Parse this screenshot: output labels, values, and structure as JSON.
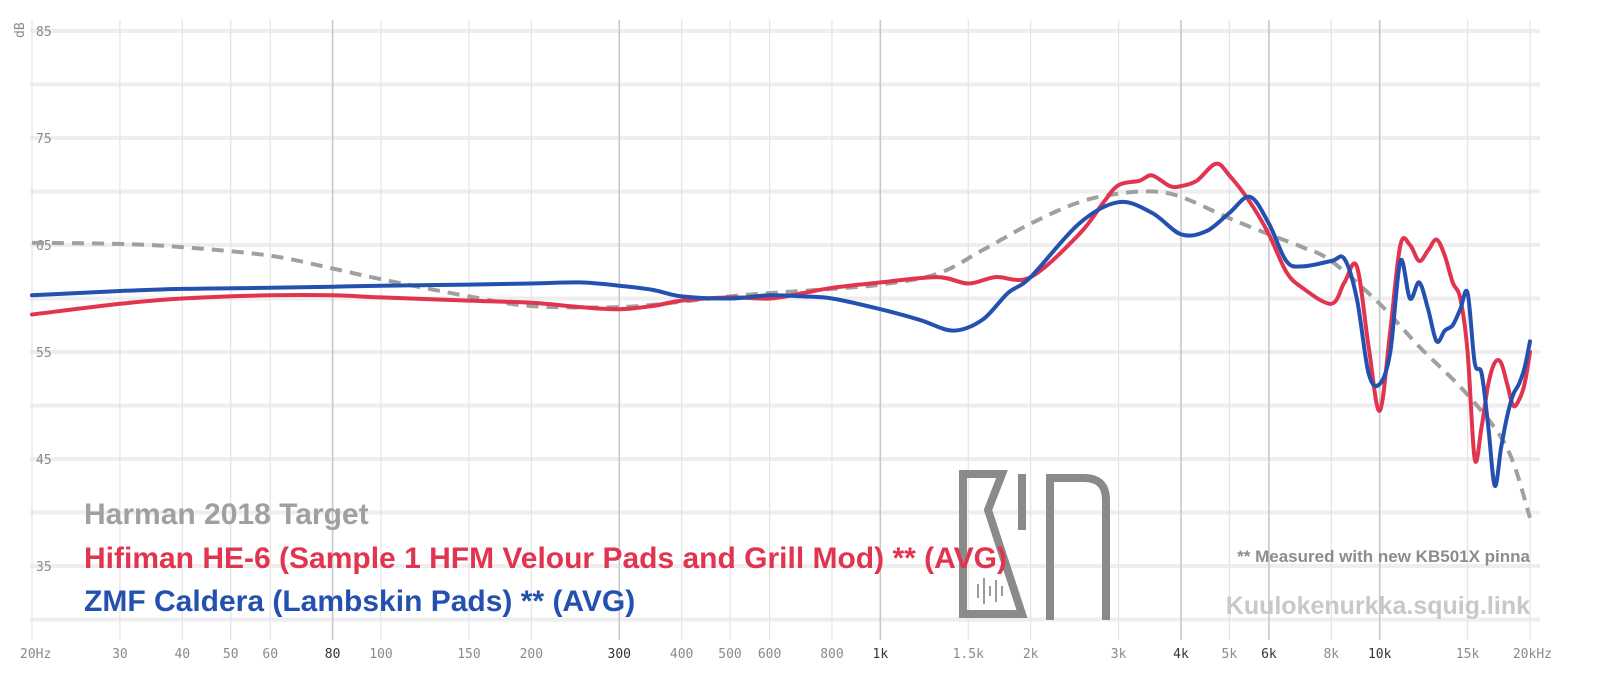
{
  "chart_data": {
    "type": "line",
    "ylabel": "dB",
    "x_scale": "log",
    "xlim": [
      20,
      20000
    ],
    "ylim": [
      30,
      85
    ],
    "yticks": [
      {
        "value": 85,
        "label": "85"
      },
      {
        "value": 75,
        "label": "75"
      },
      {
        "value": 65,
        "label": "65"
      },
      {
        "value": 55,
        "label": "55"
      },
      {
        "value": 45,
        "label": "45"
      },
      {
        "value": 35,
        "label": "35"
      }
    ],
    "xticks": [
      {
        "value": 20,
        "label": "20Hz",
        "major": false
      },
      {
        "value": 30,
        "label": "30",
        "major": false
      },
      {
        "value": 40,
        "label": "40",
        "major": false
      },
      {
        "value": 50,
        "label": "50",
        "major": false
      },
      {
        "value": 60,
        "label": "60",
        "major": false
      },
      {
        "value": 80,
        "label": "80",
        "major": true
      },
      {
        "value": 100,
        "label": "100",
        "major": false
      },
      {
        "value": 150,
        "label": "150",
        "major": false
      },
      {
        "value": 200,
        "label": "200",
        "major": false
      },
      {
        "value": 300,
        "label": "300",
        "major": true
      },
      {
        "value": 400,
        "label": "400",
        "major": false
      },
      {
        "value": 500,
        "label": "500",
        "major": false
      },
      {
        "value": 600,
        "label": "600",
        "major": false
      },
      {
        "value": 800,
        "label": "800",
        "major": false
      },
      {
        "value": 1000,
        "label": "1k",
        "major": true
      },
      {
        "value": 1500,
        "label": "1.5k",
        "major": false
      },
      {
        "value": 2000,
        "label": "2k",
        "major": false
      },
      {
        "value": 3000,
        "label": "3k",
        "major": false
      },
      {
        "value": 4000,
        "label": "4k",
        "major": true
      },
      {
        "value": 5000,
        "label": "5k",
        "major": false
      },
      {
        "value": 6000,
        "label": "6k",
        "major": true
      },
      {
        "value": 8000,
        "label": "8k",
        "major": false
      },
      {
        "value": 10000,
        "label": "10k",
        "major": true
      },
      {
        "value": 15000,
        "label": "15k",
        "major": false
      },
      {
        "value": 20000,
        "label": "20kHz",
        "major": false
      }
    ],
    "grid": true,
    "legend_position": "bottom-left",
    "series": [
      {
        "name": "Harman 2018 Target",
        "color": "#a0a0a0",
        "dashed": true,
        "x": [
          20,
          30,
          40,
          60,
          80,
          100,
          150,
          200,
          300,
          400,
          500,
          600,
          800,
          1000,
          1300,
          1600,
          2000,
          2500,
          3000,
          3500,
          4000,
          5000,
          6000,
          7000,
          8000,
          10000,
          12000,
          15000,
          18000,
          20000
        ],
        "values": [
          65.2,
          65.1,
          64.8,
          64.0,
          62.8,
          61.8,
          60.2,
          59.3,
          59.2,
          59.7,
          60.2,
          60.5,
          60.9,
          61.3,
          62.3,
          64.5,
          67.0,
          69.0,
          69.8,
          70.0,
          69.5,
          67.5,
          66.0,
          64.8,
          63.5,
          59.5,
          55.5,
          51.0,
          46.0,
          39.5
        ]
      },
      {
        "name": "Hifiman HE-6 (Sample 1 HFM Velour Pads and Grill Mod) ** (AVG)",
        "color": "#e0344f",
        "dashed": false,
        "x": [
          20,
          30,
          40,
          60,
          80,
          100,
          150,
          200,
          250,
          300,
          350,
          400,
          500,
          600,
          700,
          800,
          1000,
          1300,
          1500,
          1700,
          2000,
          2500,
          2800,
          3000,
          3300,
          3500,
          3800,
          4000,
          4300,
          4700,
          5000,
          5500,
          6000,
          6500,
          7000,
          8000,
          8500,
          9000,
          9500,
          10000,
          10500,
          11000,
          11500,
          12000,
          12500,
          13000,
          13500,
          14000,
          14500,
          15000,
          15500,
          16000,
          16500,
          17000,
          17500,
          18000,
          18500,
          19000,
          19500,
          20000
        ],
        "values": [
          58.5,
          59.5,
          60.0,
          60.3,
          60.3,
          60.1,
          59.8,
          59.6,
          59.2,
          59.0,
          59.3,
          59.8,
          60.1,
          60.0,
          60.5,
          61.0,
          61.5,
          62.0,
          61.4,
          62.0,
          62.0,
          66.0,
          69.0,
          70.6,
          71.0,
          71.5,
          70.5,
          70.5,
          71.0,
          72.6,
          71.5,
          69.0,
          66.0,
          62.5,
          61.0,
          59.5,
          61.5,
          63.0,
          55.5,
          49.5,
          57.0,
          65.0,
          65.0,
          63.5,
          64.5,
          65.5,
          64.0,
          61.5,
          60.0,
          55.0,
          45.0,
          48.0,
          52.0,
          54.0,
          54.0,
          52.0,
          50.0,
          50.5,
          52.0,
          55.0
        ]
      },
      {
        "name": "ZMF Caldera (Lambskin Pads) ** (AVG)",
        "color": "#2450b0",
        "dashed": false,
        "x": [
          20,
          30,
          40,
          60,
          80,
          100,
          150,
          200,
          250,
          300,
          350,
          400,
          500,
          600,
          700,
          800,
          1000,
          1200,
          1400,
          1600,
          1800,
          2000,
          2500,
          3000,
          3500,
          4000,
          4500,
          5000,
          5500,
          6000,
          6500,
          7000,
          8000,
          8500,
          9000,
          9500,
          10000,
          10500,
          11000,
          11500,
          12000,
          12500,
          13000,
          13500,
          14000,
          14500,
          15000,
          15500,
          16000,
          16500,
          17000,
          17500,
          18000,
          18500,
          19000,
          19500,
          20000
        ],
        "values": [
          60.3,
          60.7,
          60.9,
          61.0,
          61.1,
          61.2,
          61.3,
          61.4,
          61.5,
          61.2,
          60.8,
          60.2,
          60.0,
          60.3,
          60.2,
          60.0,
          59.0,
          58.0,
          57.0,
          58.0,
          60.5,
          62.0,
          67.0,
          69.0,
          68.0,
          66.0,
          66.3,
          68.0,
          69.5,
          67.0,
          63.5,
          63.0,
          63.5,
          63.7,
          60.0,
          53.0,
          52.0,
          55.0,
          63.5,
          60.0,
          61.5,
          59.0,
          56.0,
          57.0,
          57.5,
          59.0,
          60.5,
          54.0,
          53.0,
          48.0,
          42.5,
          46.0,
          49.0,
          51.0,
          52.0,
          53.5,
          56.0
        ]
      }
    ]
  },
  "legend": {
    "items": [
      {
        "label": "Harman 2018 Target",
        "color": "#a0a0a0"
      },
      {
        "label": "Hifiman HE-6 (Sample 1 HFM Velour Pads and Grill Mod) ** (AVG)",
        "color": "#e0344f"
      },
      {
        "label": "ZMF Caldera (Lambskin Pads) ** (AVG)",
        "color": "#2450b0"
      }
    ]
  },
  "note": "** Measured with new KB501X pinna",
  "site": "Kuulokenurkka.squig.link"
}
